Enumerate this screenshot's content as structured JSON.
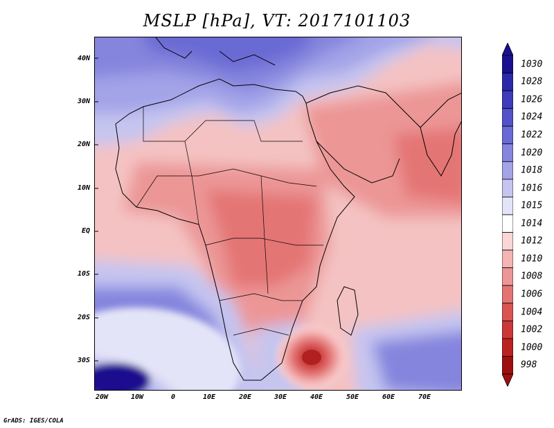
{
  "title": "MSLP [hPa], VT: 2017101103",
  "credit": "GrADS: IGES/COLA",
  "lat_labels": [
    "40N",
    "30N",
    "20N",
    "10N",
    "EQ",
    "10S",
    "20S",
    "30S"
  ],
  "lon_labels": [
    "20W",
    "10W",
    "0",
    "10E",
    "20E",
    "30E",
    "40E",
    "50E",
    "60E",
    "70E"
  ],
  "colorbar": {
    "labels": [
      "1030",
      "1028",
      "1026",
      "1024",
      "1022",
      "1020",
      "1018",
      "1016",
      "1015",
      "1014",
      "1012",
      "1010",
      "1008",
      "1006",
      "1004",
      "1002",
      "1000",
      "998"
    ],
    "colors": [
      "#1a108f",
      "#2a2aa8",
      "#3e3cbb",
      "#5352c8",
      "#6a6ad4",
      "#8585de",
      "#a3a3e8",
      "#c5c5f0",
      "#e4e4f8",
      "#ffffff",
      "#fbd6d6",
      "#f4b4b4",
      "#ec9696",
      "#e47474",
      "#da5454",
      "#cc3838",
      "#bb2222",
      "#9c1010"
    ]
  },
  "map": {
    "projection": "lat-lon",
    "lon_range": [
      -22,
      80
    ],
    "lat_range": [
      -37,
      45
    ],
    "low_pressure_center": {
      "lon": 40,
      "lat": -29
    }
  }
}
